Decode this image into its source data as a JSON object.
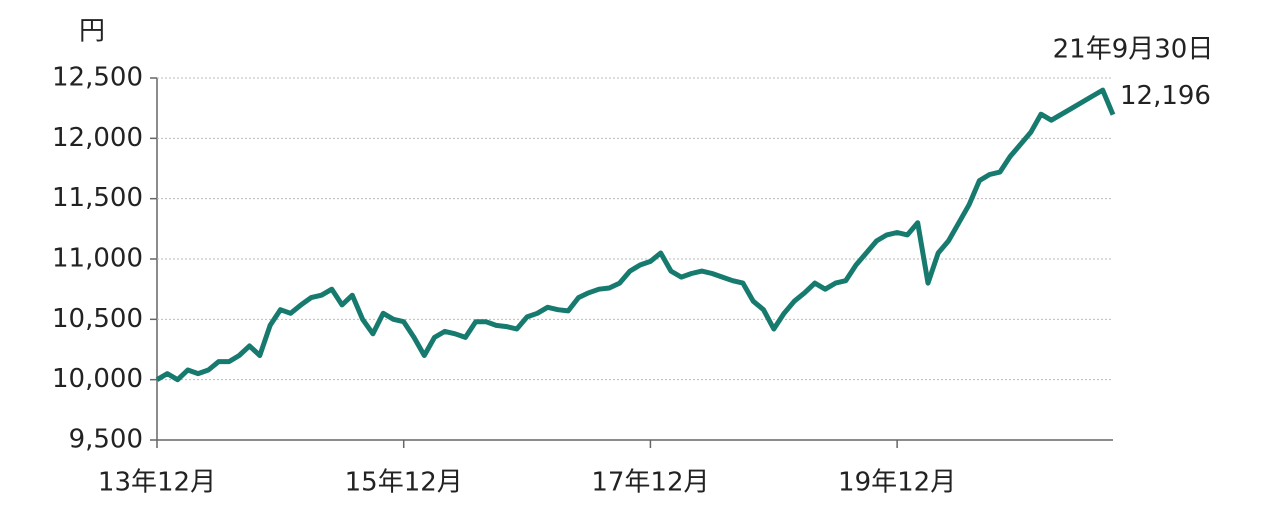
{
  "chart_data": {
    "type": "line",
    "y_label": "円",
    "categories": [
      "13年12月",
      null,
      null,
      null,
      null,
      null,
      null,
      null,
      null,
      null,
      null,
      null,
      null,
      null,
      null,
      null,
      null,
      null,
      null,
      null,
      null,
      null,
      null,
      null,
      "15年12月",
      null,
      null,
      null,
      null,
      null,
      null,
      null,
      null,
      null,
      null,
      null,
      null,
      null,
      null,
      null,
      null,
      null,
      null,
      null,
      null,
      null,
      null,
      null,
      "17年12月",
      null,
      null,
      null,
      null,
      null,
      null,
      null,
      null,
      null,
      null,
      null,
      null,
      null,
      null,
      null,
      null,
      null,
      null,
      null,
      null,
      null,
      null,
      null,
      "19年12月",
      null,
      null,
      null,
      null,
      null,
      null,
      null,
      null,
      null,
      null,
      null,
      null,
      null,
      null,
      null,
      null,
      null,
      null,
      null,
      null,
      null
    ],
    "series": [
      {
        "name": null,
        "color": "#177a6e",
        "values": [
          10000,
          10050,
          10000,
          10080,
          10050,
          10080,
          10150,
          10150,
          10200,
          10280,
          10200,
          10450,
          10580,
          10550,
          10620,
          10680,
          10700,
          10750,
          10620,
          10700,
          10500,
          10380,
          10550,
          10500,
          10480,
          10350,
          10200,
          10350,
          10400,
          10380,
          10350,
          10480,
          10480,
          10450,
          10440,
          10420,
          10520,
          10550,
          10600,
          10580,
          10570,
          10680,
          10720,
          10750,
          10760,
          10800,
          10900,
          10950,
          10980,
          11050,
          10900,
          10850,
          10880,
          10900,
          10880,
          10850,
          10820,
          10800,
          10650,
          10580,
          10420,
          10550,
          10650,
          10720,
          10800,
          10750,
          10800,
          10820,
          10950,
          11050,
          11150,
          11200,
          11220,
          11200,
          11300,
          10800,
          11050,
          11150,
          11300,
          11450,
          11650,
          11700,
          11720,
          11850,
          11950,
          12050,
          12200,
          12150,
          12200,
          12250,
          12300,
          12350,
          12400,
          12196
        ]
      }
    ],
    "annotation": {
      "text": "21年9月30日",
      "value": 12196,
      "label": "12,196"
    },
    "ylim": [
      9500,
      12500
    ],
    "yticks": [
      {
        "value": 9500,
        "label": "9,500"
      },
      {
        "value": 10000,
        "label": "10,000"
      },
      {
        "value": 10500,
        "label": "10,500"
      },
      {
        "value": 11000,
        "label": "11,000"
      },
      {
        "value": 11500,
        "label": "11,500"
      },
      {
        "value": 12000,
        "label": "12,000"
      },
      {
        "value": 12500,
        "label": "12,500"
      }
    ],
    "grid": true
  }
}
